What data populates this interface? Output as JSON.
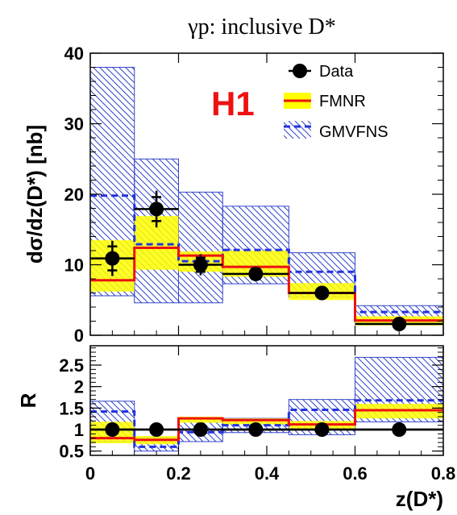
{
  "chart_data": [
    {
      "type": "bar",
      "title": "γp:  inclusive D*",
      "experiment_label": "H1",
      "xlabel": "z(D*)",
      "ylabel": "dσ/dz(D*) [nb]",
      "xlim": [
        0,
        0.8
      ],
      "ylim": [
        0,
        40
      ],
      "x_ticks": [
        "0",
        "0.2",
        "0.4",
        "0.6",
        "0.8"
      ],
      "y_ticks": [
        "0",
        "10",
        "20",
        "30",
        "40"
      ],
      "bin_edges": [
        0,
        0.1,
        0.2,
        0.3,
        0.45,
        0.6,
        0.8
      ],
      "legend": {
        "position": "top-right",
        "entries": [
          "Data",
          "FMNR",
          "GMVFNS"
        ]
      },
      "data_points": {
        "x": [
          0.05,
          0.15,
          0.25,
          0.375,
          0.525,
          0.7
        ],
        "y": [
          10.9,
          17.9,
          10.0,
          8.7,
          6.0,
          1.6
        ],
        "stat_err": [
          1.7,
          1.7,
          1.0,
          0.7,
          0.5,
          0.3
        ],
        "tot_err": [
          2.5,
          2.6,
          1.5,
          1.0,
          0.7,
          0.4
        ]
      },
      "fmnr": {
        "central": [
          7.8,
          12.4,
          11.3,
          9.7,
          6.0,
          2.1
        ],
        "low": [
          6.2,
          9.3,
          9.0,
          8.3,
          5.0,
          1.4
        ],
        "high": [
          13.5,
          16.9,
          11.9,
          12.0,
          7.4,
          2.7
        ]
      },
      "gmvfns": {
        "central": [
          19.8,
          12.9,
          10.5,
          12.1,
          9.0,
          3.3
        ],
        "low": [
          5.6,
          4.6,
          4.6,
          7.3,
          5.4,
          1.8
        ],
        "high": [
          38.0,
          25.0,
          20.3,
          18.3,
          11.7,
          4.2
        ]
      }
    },
    {
      "type": "bar",
      "xlabel": "z(D*)",
      "ylabel": "R",
      "xlim": [
        0,
        0.8
      ],
      "ylim": [
        0.4,
        2.95
      ],
      "x_ticks": [
        "0",
        "0.2",
        "0.4",
        "0.6",
        "0.8"
      ],
      "y_ticks": [
        "0.5",
        "1",
        "1.5",
        "2",
        "2.5"
      ],
      "bin_edges": [
        0,
        0.1,
        0.2,
        0.3,
        0.45,
        0.6,
        0.8
      ],
      "reference_line": 1.0,
      "data_points": {
        "x": [
          0.05,
          0.15,
          0.25,
          0.375,
          0.525,
          0.7
        ],
        "y": [
          1.0,
          1.0,
          1.0,
          1.0,
          1.0,
          1.0
        ]
      },
      "fmnr": {
        "central": [
          0.8,
          0.76,
          1.26,
          1.22,
          1.12,
          1.45
        ],
        "low": [
          0.68,
          0.66,
          1.16,
          1.12,
          1.02,
          1.26
        ],
        "high": [
          1.18,
          0.85,
          1.3,
          1.26,
          1.2,
          1.6
        ]
      },
      "gmvfns": {
        "central": [
          1.42,
          0.6,
          0.94,
          1.1,
          1.46,
          1.68
        ],
        "low": [
          0.72,
          0.5,
          0.72,
          0.93,
          0.88,
          1.18
        ],
        "high": [
          1.66,
          0.82,
          1.26,
          1.26,
          1.7,
          2.68
        ]
      }
    }
  ]
}
